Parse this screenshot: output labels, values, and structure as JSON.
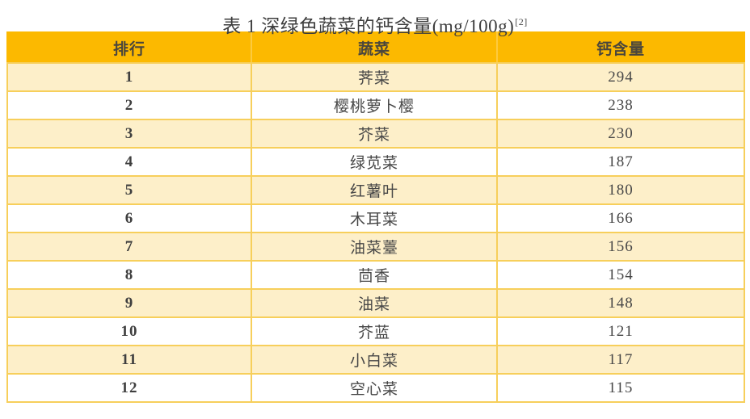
{
  "title": {
    "text": "表 1 深绿色蔬菜的钙含量(mg/100g)",
    "superscript": "[2]"
  },
  "table": {
    "headers": [
      "排行",
      "蔬菜",
      "钙含量"
    ],
    "rows": [
      {
        "rank": "1",
        "vegetable": "荠菜",
        "calcium": "294"
      },
      {
        "rank": "2",
        "vegetable": "樱桃萝卜樱",
        "calcium": "238"
      },
      {
        "rank": "3",
        "vegetable": "芥菜",
        "calcium": "230"
      },
      {
        "rank": "4",
        "vegetable": "绿苋菜",
        "calcium": "187"
      },
      {
        "rank": "5",
        "vegetable": "红薯叶",
        "calcium": "180"
      },
      {
        "rank": "6",
        "vegetable": "木耳菜",
        "calcium": "166"
      },
      {
        "rank": "7",
        "vegetable": "油菜薹",
        "calcium": "156"
      },
      {
        "rank": "8",
        "vegetable": "茴香",
        "calcium": "154"
      },
      {
        "rank": "9",
        "vegetable": "油菜",
        "calcium": "148"
      },
      {
        "rank": "10",
        "vegetable": "芥蓝",
        "calcium": "121"
      },
      {
        "rank": "11",
        "vegetable": "小白菜",
        "calcium": "117"
      },
      {
        "rank": "12",
        "vegetable": "空心菜",
        "calcium": "115"
      }
    ]
  },
  "colors": {
    "header_background": "#fcb900",
    "stripe_row_background": "#fdefc9",
    "plain_row_background": "#ffffff",
    "grid_border": "#f7cf5b",
    "header_text": "#4a463c",
    "body_text": "#474747",
    "title_text": "#3d3d3d"
  },
  "chart_data": {
    "type": "table",
    "title": "表 1 深绿色蔬菜的钙含量(mg/100g)[2]",
    "columns": [
      "排行",
      "蔬菜",
      "钙含量"
    ],
    "categories": [
      "荠菜",
      "樱桃萝卜樱",
      "芥菜",
      "绿苋菜",
      "红薯叶",
      "木耳菜",
      "油菜薹",
      "茴香",
      "油菜",
      "芥蓝",
      "小白菜",
      "空心菜"
    ],
    "values": [
      294,
      238,
      230,
      187,
      180,
      166,
      156,
      154,
      148,
      121,
      117,
      115
    ],
    "unit": "mg/100g"
  }
}
